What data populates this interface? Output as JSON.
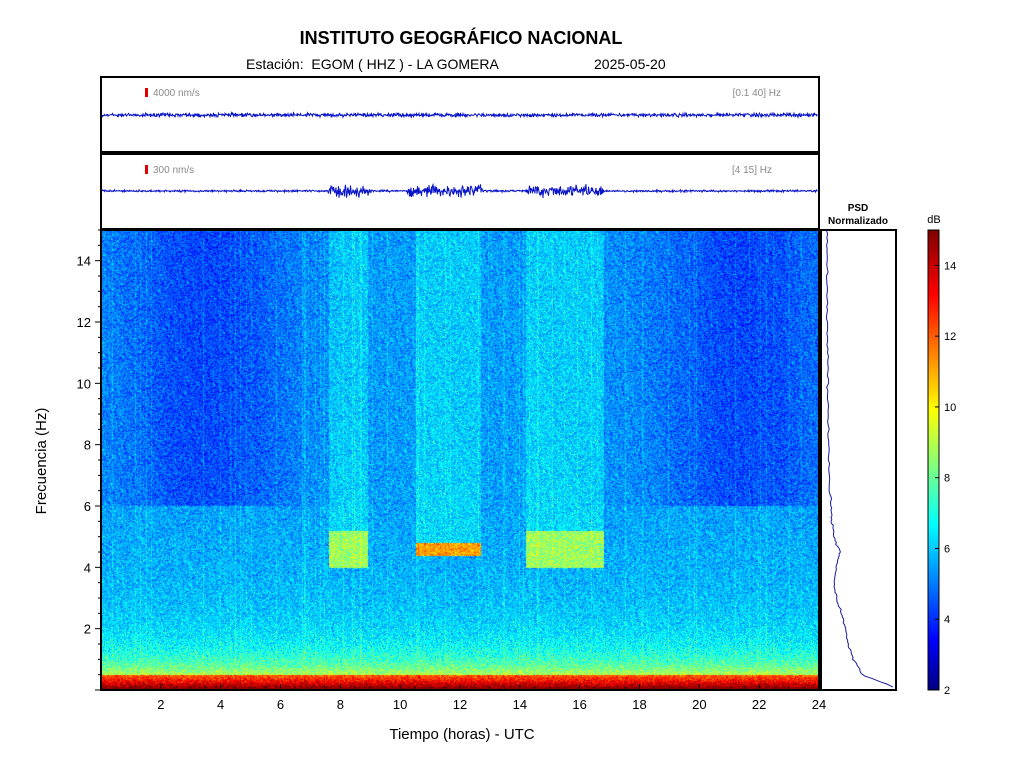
{
  "header": {
    "title": "INSTITUTO GEOGRÁFICO NACIONAL",
    "station_prefix": "Estación:  ",
    "station": "EGOM ( HHZ ) - LA GOMERA",
    "date": "2025-05-20"
  },
  "colors": {
    "trace": "#0a14c8",
    "scale_marker": "#e00000",
    "psd_line": "#1a1aa0",
    "background": "#ffffff"
  },
  "chart_data": [
    {
      "type": "line",
      "name": "broadband_trace",
      "scale_label": "4000 nm/s",
      "filter_label": "[0.1 40] Hz",
      "x_range": [
        0,
        24
      ],
      "activity_windows": []
    },
    {
      "type": "line",
      "name": "filtered_trace",
      "scale_label": "300 nm/s",
      "filter_label": "[4 15] Hz",
      "x_range": [
        0,
        24
      ],
      "activity_windows": [
        [
          7.5,
          9.0
        ],
        [
          10.2,
          12.8
        ],
        [
          14.2,
          16.8
        ]
      ]
    },
    {
      "type": "heatmap",
      "xlabel": "Tiempo (horas) - UTC",
      "ylabel": "Frecuencia  (Hz)",
      "xlim": [
        0,
        24
      ],
      "ylim": [
        0,
        15
      ],
      "xticks": [
        2,
        4,
        6,
        8,
        10,
        12,
        14,
        16,
        18,
        20,
        22,
        24
      ],
      "yticks": [
        2,
        4,
        6,
        8,
        10,
        12,
        14
      ],
      "colorbar": {
        "label": "dB",
        "range": [
          2,
          15
        ],
        "ticks": [
          2,
          4,
          6,
          8,
          10,
          12,
          14
        ]
      },
      "features": [
        {
          "t0": 7.6,
          "t1": 8.9,
          "f0": 4.0,
          "f1": 5.2,
          "level": 9.5
        },
        {
          "t0": 10.5,
          "t1": 12.7,
          "f0": 4.4,
          "f1": 4.8,
          "level": 12
        },
        {
          "t0": 14.2,
          "t1": 16.8,
          "f0": 4.0,
          "f1": 5.2,
          "level": 9.5
        }
      ]
    },
    {
      "type": "line",
      "name": "psd",
      "title_line1": "PSD",
      "title_line2": "Normalizado",
      "freq": [
        0.1,
        0.5,
        1,
        1.5,
        2,
        2.5,
        3,
        3.5,
        4,
        4.5,
        5,
        5.5,
        6,
        7,
        8,
        9,
        10,
        11,
        12,
        13,
        14,
        15
      ],
      "values": [
        1.0,
        0.55,
        0.42,
        0.34,
        0.3,
        0.24,
        0.17,
        0.14,
        0.16,
        0.22,
        0.13,
        0.1,
        0.09,
        0.06,
        0.05,
        0.05,
        0.04,
        0.04,
        0.03,
        0.03,
        0.03,
        0.03
      ]
    }
  ]
}
